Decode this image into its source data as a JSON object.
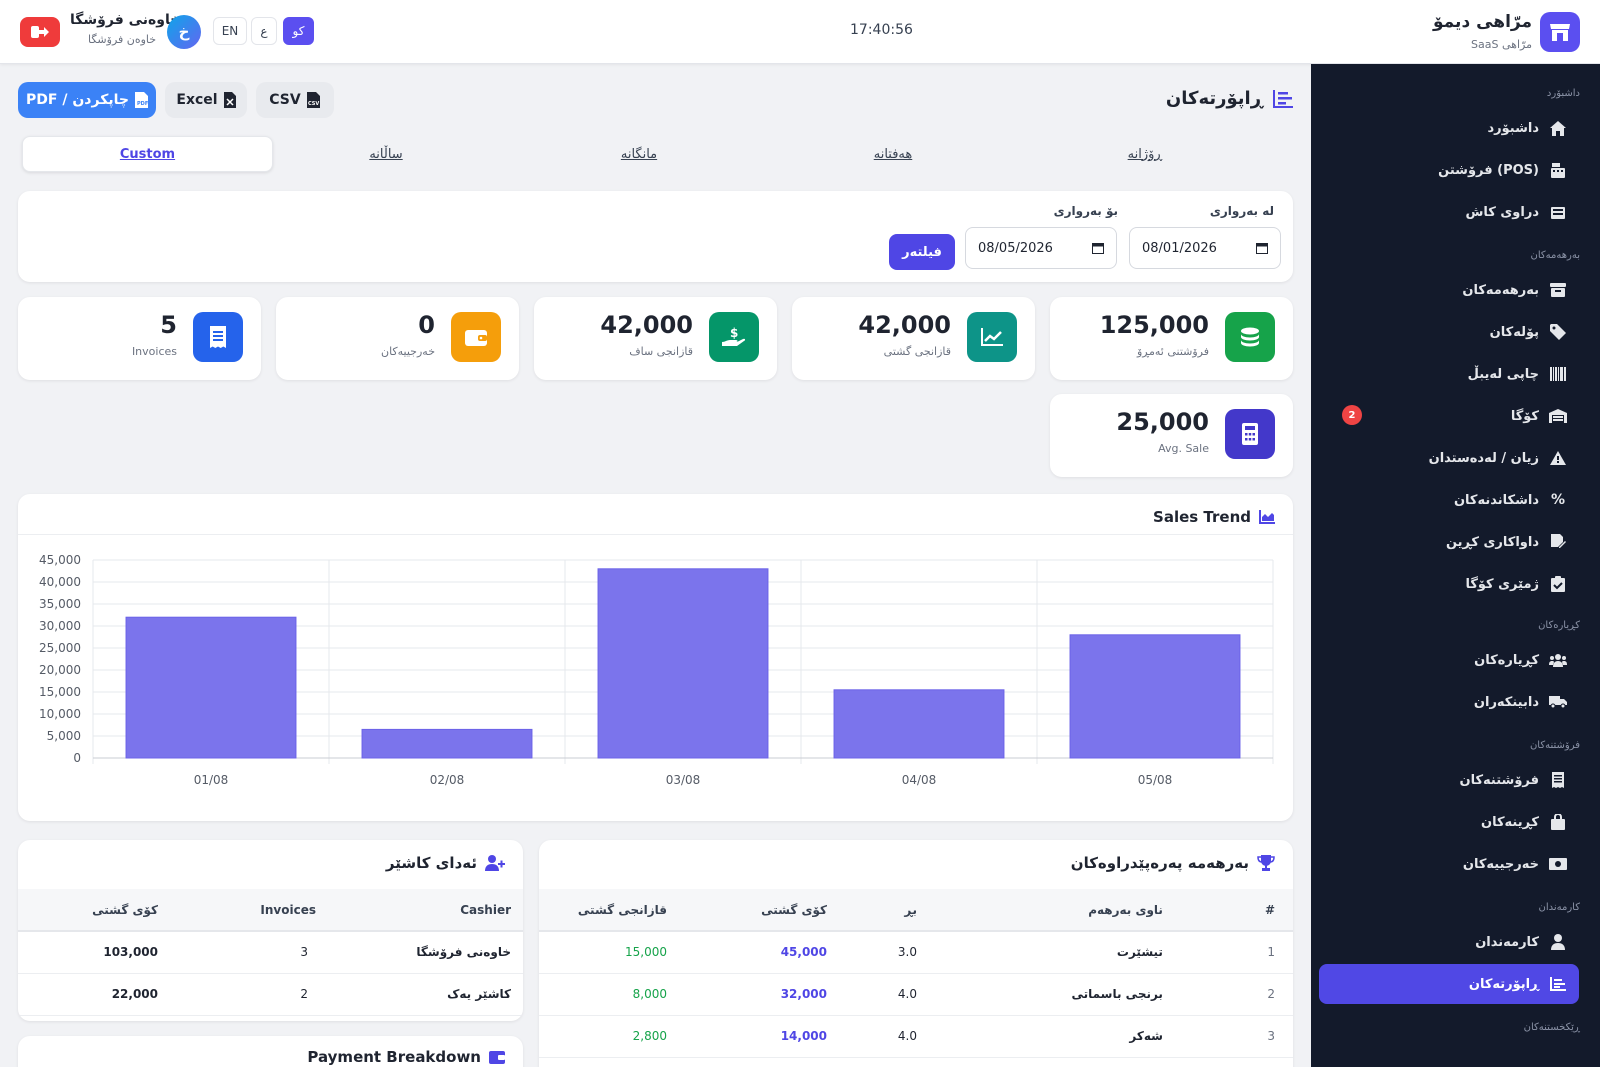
{
  "brand": {
    "name": "مرّاهی دیمۆ",
    "sub": "SaaS مرّاهی"
  },
  "clock": "17:40:56",
  "user": {
    "name": "خاوەنی فرۆشگا",
    "role": "خاوەن فرۆشگا",
    "initial": "خ"
  },
  "langs": [
    "کو",
    "ع",
    "EN"
  ],
  "sidebar": {
    "sections": [
      "داشبۆرد",
      "بەرهەمەکان",
      "کڕیارەکان",
      "فرۆشتنەکان",
      "کارمەندان",
      "ڕێکخستنەکان"
    ],
    "items": [
      {
        "label": "داشبۆرد",
        "icon": "home-icon"
      },
      {
        "label": "فرۆشتن (POS)",
        "icon": "cash-register-icon"
      },
      {
        "label": "دراوی کاش",
        "icon": "cash-drawer-icon"
      },
      {
        "label": "بەرهەمەکان",
        "icon": "box-icon"
      },
      {
        "label": "پۆلەکان",
        "icon": "tag-icon"
      },
      {
        "label": "چاپی لەیبڵ",
        "icon": "barcode-icon"
      },
      {
        "label": "کۆگا",
        "icon": "warehouse-icon",
        "badge": "2"
      },
      {
        "label": "زیان / لەدەستدان",
        "icon": "warning-icon"
      },
      {
        "label": "داشکاندنەکان",
        "icon": "percent-icon"
      },
      {
        "label": "داواکاری کڕین",
        "icon": "file-signature-icon"
      },
      {
        "label": "ژمێری کۆگا",
        "icon": "clipboard-check-icon"
      },
      {
        "label": "کڕیارەکان",
        "icon": "users-icon"
      },
      {
        "label": "دابینکەران",
        "icon": "truck-icon"
      },
      {
        "label": "فرۆشتنەکان",
        "icon": "receipt-icon"
      },
      {
        "label": "کڕینەکان",
        "icon": "bag-icon"
      },
      {
        "label": "خەرجییەکان",
        "icon": "money-bill-icon"
      },
      {
        "label": "کارمەندان",
        "icon": "user-icon"
      },
      {
        "label": "ڕاپۆرتەکان",
        "icon": "report-icon",
        "active": true
      }
    ]
  },
  "page": {
    "title": "ڕاپۆرتەکان"
  },
  "exports": {
    "pdf": "PDF / چاپکردن",
    "excel": "Excel",
    "csv": "CSV"
  },
  "tabs": [
    "ڕۆژانە",
    "هەفتانە",
    "مانگانە",
    "ساڵانە",
    "Custom"
  ],
  "filter": {
    "from_label": "لە بەرواری",
    "to_label": "بۆ بەرواری",
    "from": "08/01/2026",
    "to": "08/05/2026",
    "button": "فیلتەر"
  },
  "stats": [
    {
      "value": "125,000",
      "label": "فرۆشتنی ئەمڕۆ",
      "icon": "coins-icon",
      "color": "#16a34a"
    },
    {
      "value": "42,000",
      "label": "قازانجی گشتی",
      "icon": "chart-line-icon",
      "color": "#0d9488"
    },
    {
      "value": "42,000",
      "label": "قازانجی ساف",
      "icon": "hand-dollar-icon",
      "color": "#059669"
    },
    {
      "value": "0",
      "label": "خەرجییەکان",
      "icon": "wallet-icon",
      "color": "#f59e0b"
    },
    {
      "value": "5",
      "label": "Invoices",
      "icon": "invoice-icon",
      "color": "#2563eb"
    },
    {
      "value": "25,000",
      "label": "Avg. Sale",
      "icon": "calculator-icon",
      "color": "#4338ca"
    }
  ],
  "chart_card": {
    "title": "Sales Trend"
  },
  "chart_data": {
    "type": "bar",
    "categories": [
      "01/08",
      "02/08",
      "03/08",
      "04/08",
      "05/08"
    ],
    "values": [
      32000,
      6500,
      43000,
      15500,
      28000
    ],
    "ylim": [
      0,
      45000
    ],
    "yticks": [
      "0",
      "5,000",
      "10,000",
      "15,000",
      "20,000",
      "25,000",
      "30,000",
      "35,000",
      "40,000",
      "45,000"
    ],
    "color": "#7b74ec",
    "grid": true
  },
  "top_products": {
    "title": "بەرهەمە پەرەپێدراوەکان",
    "headers": [
      "#",
      "ناوی بەرهەم",
      "بڕ",
      "کۆی گشتی",
      "قازانجی گشتی"
    ],
    "rows": [
      {
        "n": "1",
        "name": "تیشێرت",
        "qty": "3.0",
        "total": "45,000",
        "profit": "15,000"
      },
      {
        "n": "2",
        "name": "برنجی باسماتی",
        "qty": "4.0",
        "total": "32,000",
        "profit": "8,000"
      },
      {
        "n": "3",
        "name": "شەکر",
        "qty": "4.0",
        "total": "14,000",
        "profit": "2,800"
      }
    ]
  },
  "cashier": {
    "title": "ئەدای کاشێر",
    "headers": [
      "Cashier",
      "Invoices",
      "کۆی گشتی"
    ],
    "rows": [
      {
        "name": "خاوەنی فرۆشگا",
        "invoices": "3",
        "total": "103,000"
      },
      {
        "name": "کاشێر یەک",
        "invoices": "2",
        "total": "22,000"
      }
    ]
  },
  "payment": {
    "title": "Payment Breakdown"
  }
}
